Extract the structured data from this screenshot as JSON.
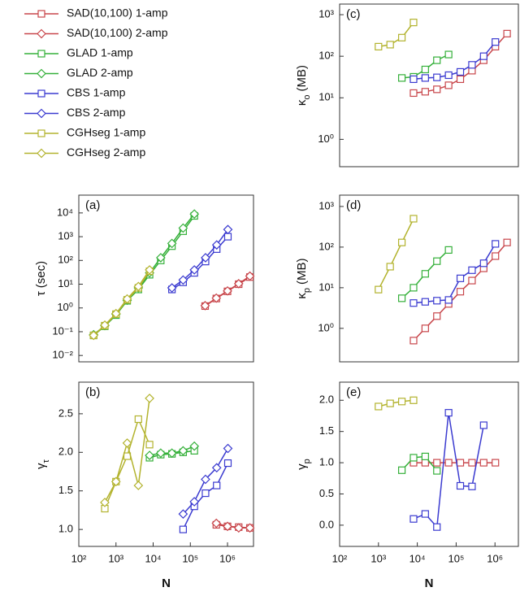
{
  "chart_data": [
    {
      "type": "line",
      "label": "(a)",
      "ylabel": {
        "symbol": "τ",
        "unit": "(sec)"
      },
      "log_x": true,
      "log_y": true,
      "legend": "outside-top-left",
      "xlim": [
        100,
        5000000
      ],
      "ylim": [
        0.0054,
        56000
      ],
      "yticks": [
        {
          "value": 0.01,
          "label": "10⁻²"
        },
        {
          "value": 0.1,
          "label": "10⁻¹"
        },
        {
          "value": 1,
          "label": "10⁰"
        },
        {
          "value": 10,
          "label": "10¹"
        },
        {
          "value": 100,
          "label": "10²"
        },
        {
          "value": 1000,
          "label": "10³"
        },
        {
          "value": 10000,
          "label": "10⁴"
        }
      ],
      "series": [
        {
          "name": "SAD(10,100) 1-amp",
          "color": "#c8464b",
          "marker": "square",
          "x": [
            250000,
            500000,
            1000000,
            2000000,
            4000000
          ],
          "values": [
            1.2,
            2.5,
            5,
            10,
            20
          ]
        },
        {
          "name": "SAD(10,100) 2-amp",
          "color": "#c8464b",
          "marker": "diamond",
          "x": [
            250000,
            500000,
            1000000,
            2000000,
            4000000
          ],
          "values": [
            1.25,
            2.6,
            5.2,
            10.5,
            22
          ]
        },
        {
          "name": "GLAD 1-amp",
          "color": "#35b03a",
          "marker": "square",
          "x": [
            250,
            500,
            1000,
            2000,
            4000,
            8000,
            16000,
            32000,
            64000,
            128000
          ],
          "values": [
            0.07,
            0.17,
            0.5,
            2,
            6,
            25,
            100,
            400,
            1700,
            7500
          ]
        },
        {
          "name": "GLAD 2-amp",
          "color": "#35b03a",
          "marker": "diamond",
          "x": [
            250,
            500,
            1000,
            2000,
            4000,
            8000,
            16000,
            32000,
            64000,
            128000
          ],
          "values": [
            0.075,
            0.18,
            0.55,
            2.1,
            7,
            30,
            130,
            520,
            2300,
            9000
          ]
        },
        {
          "name": "CBS 1-amp",
          "color": "#3b3bd0",
          "marker": "square",
          "x": [
            32000,
            64000,
            128000,
            256000,
            512000,
            1024000
          ],
          "values": [
            6,
            12,
            30,
            90,
            300,
            1000
          ]
        },
        {
          "name": "CBS 2-amp",
          "color": "#3b3bd0",
          "marker": "diamond",
          "x": [
            32000,
            64000,
            128000,
            256000,
            512000,
            1024000
          ],
          "values": [
            7,
            15,
            40,
            130,
            450,
            2000
          ]
        },
        {
          "name": "CGHseg 1-amp",
          "color": "#b3b32e",
          "marker": "square",
          "x": [
            250,
            500,
            1000,
            2000,
            4000,
            8000
          ],
          "values": [
            0.07,
            0.18,
            0.55,
            2.2,
            7,
            35
          ]
        },
        {
          "name": "CGHseg 2-amp",
          "color": "#b3b32e",
          "marker": "diamond",
          "x": [
            250,
            500,
            1000,
            2000,
            4000,
            8000
          ],
          "values": [
            0.07,
            0.19,
            0.58,
            2.4,
            8,
            40
          ]
        }
      ]
    },
    {
      "type": "line",
      "label": "(b)",
      "ylabel": {
        "symbol": "γ",
        "subscript": "τ"
      },
      "xlabel": "N",
      "log_x": true,
      "log_y": false,
      "xlim": [
        100,
        5000000
      ],
      "ylim": [
        0.78,
        2.91
      ],
      "xticks": [
        {
          "value": 100,
          "label": "10²"
        },
        {
          "value": 1000,
          "label": "10³"
        },
        {
          "value": 10000,
          "label": "10⁴"
        },
        {
          "value": 100000,
          "label": "10⁵"
        },
        {
          "value": 1000000,
          "label": "10⁶"
        }
      ],
      "yticks": [
        {
          "value": 1,
          "label": "1.0"
        },
        {
          "value": 1.5,
          "label": "1.5"
        },
        {
          "value": 2,
          "label": "2.0"
        },
        {
          "value": 2.5,
          "label": "2.5"
        }
      ],
      "series": [
        {
          "name": "SAD(10,100) 1-amp",
          "color": "#c8464b",
          "marker": "square",
          "x": [
            500000,
            1000000,
            2000000,
            4000000
          ],
          "values": [
            1.06,
            1.04,
            1.03,
            1.02
          ]
        },
        {
          "name": "SAD(10,100) 2-amp",
          "color": "#c8464b",
          "marker": "diamond",
          "x": [
            500000,
            1000000,
            2000000,
            4000000
          ],
          "values": [
            1.08,
            1.04,
            1.02,
            1.02
          ]
        },
        {
          "name": "GLAD 1-amp",
          "color": "#35b03a",
          "marker": "square",
          "x": [
            8000,
            16000,
            32000,
            64000,
            128000
          ],
          "values": [
            1.93,
            1.97,
            1.98,
            2.0,
            2.02
          ]
        },
        {
          "name": "GLAD 2-amp",
          "color": "#35b03a",
          "marker": "diamond",
          "x": [
            8000,
            16000,
            32000,
            64000,
            128000
          ],
          "values": [
            1.96,
            1.99,
            1.99,
            2.02,
            2.08
          ]
        },
        {
          "name": "CBS 1-amp",
          "color": "#3b3bd0",
          "marker": "square",
          "x": [
            64000,
            128000,
            256000,
            512000,
            1024000
          ],
          "values": [
            1.0,
            1.3,
            1.47,
            1.57,
            1.86
          ]
        },
        {
          "name": "CBS 2-amp",
          "color": "#3b3bd0",
          "marker": "diamond",
          "x": [
            64000,
            128000,
            256000,
            512000,
            1024000
          ],
          "values": [
            1.2,
            1.36,
            1.65,
            1.8,
            2.05
          ]
        },
        {
          "name": "CGHseg 1-amp",
          "color": "#b3b32e",
          "marker": "square",
          "x": [
            500,
            1000,
            2000,
            4000,
            8000
          ],
          "values": [
            1.27,
            1.62,
            1.95,
            2.43,
            2.1
          ]
        },
        {
          "name": "CGHseg 2-amp",
          "color": "#b3b32e",
          "marker": "diamond",
          "x": [
            500,
            1000,
            2000,
            4000,
            8000
          ],
          "values": [
            1.35,
            1.62,
            2.12,
            1.57,
            2.7
          ]
        }
      ]
    },
    {
      "type": "line",
      "label": "(c)",
      "ylabel": {
        "symbol": "κ",
        "subscript": "o",
        "unit": "(MB)"
      },
      "log_x": true,
      "log_y": true,
      "xlim": [
        100,
        4000000
      ],
      "ylim": [
        0.22,
        1800
      ],
      "yticks": [
        {
          "value": 1,
          "label": "10⁰"
        },
        {
          "value": 10,
          "label": "10¹"
        },
        {
          "value": 100,
          "label": "10²"
        },
        {
          "value": 1000,
          "label": "10³"
        }
      ],
      "series": [
        {
          "name": "SAD(10,100) 1-amp",
          "color": "#c8464b",
          "marker": "square",
          "x": [
            8000,
            16000,
            32000,
            64000,
            128000,
            256000,
            512000,
            1024000,
            2048000
          ],
          "values": [
            13,
            14,
            16,
            20,
            28,
            45,
            80,
            170,
            350
          ]
        },
        {
          "name": "GLAD 1-amp",
          "color": "#35b03a",
          "marker": "square",
          "x": [
            4000,
            8000,
            16000,
            32000,
            64000
          ],
          "values": [
            30,
            32,
            48,
            80,
            110
          ]
        },
        {
          "name": "CBS 1-amp",
          "color": "#3b3bd0",
          "marker": "square",
          "x": [
            8000,
            16000,
            32000,
            64000,
            128000,
            256000,
            512000,
            1024000
          ],
          "values": [
            28,
            30,
            31,
            35,
            42,
            62,
            100,
            220
          ]
        },
        {
          "name": "CGHseg 1-amp",
          "color": "#b3b32e",
          "marker": "square",
          "x": [
            1000,
            2000,
            4000,
            8000
          ],
          "values": [
            170,
            190,
            280,
            650
          ]
        }
      ]
    },
    {
      "type": "line",
      "label": "(d)",
      "ylabel": {
        "symbol": "κ",
        "subscript": "p",
        "unit": "(MB)"
      },
      "log_x": true,
      "log_y": true,
      "xlim": [
        100,
        4000000
      ],
      "ylim": [
        0.15,
        1900
      ],
      "yticks": [
        {
          "value": 1,
          "label": "10⁰"
        },
        {
          "value": 10,
          "label": "10¹"
        },
        {
          "value": 100,
          "label": "10²"
        },
        {
          "value": 1000,
          "label": "10³"
        }
      ],
      "series": [
        {
          "name": "SAD(10,100) 1-amp",
          "color": "#c8464b",
          "marker": "square",
          "x": [
            8000,
            16000,
            32000,
            64000,
            128000,
            256000,
            512000,
            1024000,
            2048000
          ],
          "values": [
            0.5,
            1,
            2,
            4,
            8,
            15,
            30,
            60,
            130
          ]
        },
        {
          "name": "GLAD 1-amp",
          "color": "#35b03a",
          "marker": "square",
          "x": [
            4000,
            8000,
            16000,
            32000,
            64000
          ],
          "values": [
            5.5,
            10,
            22,
            45,
            85
          ]
        },
        {
          "name": "CBS 1-amp",
          "color": "#3b3bd0",
          "marker": "square",
          "x": [
            8000,
            16000,
            32000,
            64000,
            128000,
            256000,
            512000,
            1024000
          ],
          "values": [
            4.2,
            4.5,
            4.8,
            5,
            17,
            27,
            40,
            120
          ]
        },
        {
          "name": "CGHseg 1-amp",
          "color": "#b3b32e",
          "marker": "square",
          "x": [
            1000,
            2000,
            4000,
            8000
          ],
          "values": [
            9,
            33,
            130,
            500
          ]
        }
      ]
    },
    {
      "type": "line",
      "label": "(e)",
      "ylabel": {
        "symbol": "γ",
        "subscript": "p"
      },
      "xlabel": "N",
      "log_x": true,
      "log_y": false,
      "xlim": [
        100,
        4000000
      ],
      "ylim": [
        -0.34,
        2.29
      ],
      "xticks": [
        {
          "value": 100,
          "label": "10²"
        },
        {
          "value": 1000,
          "label": "10³"
        },
        {
          "value": 10000,
          "label": "10⁴"
        },
        {
          "value": 100000,
          "label": "10⁵"
        },
        {
          "value": 1000000,
          "label": "10⁶"
        }
      ],
      "yticks": [
        {
          "value": 0,
          "label": "0.0"
        },
        {
          "value": 0.5,
          "label": "0.5"
        },
        {
          "value": 1,
          "label": "1.0"
        },
        {
          "value": 1.5,
          "label": "1.5"
        },
        {
          "value": 2,
          "label": "2.0"
        }
      ],
      "series": [
        {
          "name": "SAD(10,100) 1-amp",
          "color": "#c8464b",
          "marker": "square",
          "x": [
            8000,
            16000,
            32000,
            64000,
            128000,
            256000,
            512000,
            1024000
          ],
          "values": [
            1,
            1,
            1,
            1,
            1,
            1,
            1,
            1
          ]
        },
        {
          "name": "GLAD 1-amp",
          "color": "#35b03a",
          "marker": "square",
          "x": [
            4000,
            8000,
            16000,
            32000
          ],
          "values": [
            0.88,
            1.08,
            1.1,
            0.87
          ]
        },
        {
          "name": "CBS 1-amp",
          "color": "#3b3bd0",
          "marker": "square",
          "x": [
            8000,
            16000,
            32000,
            64000,
            128000,
            256000,
            512000
          ],
          "values": [
            0.1,
            0.18,
            -0.03,
            1.8,
            0.63,
            0.62,
            1.6
          ]
        },
        {
          "name": "CGHseg 1-amp",
          "color": "#b3b32e",
          "marker": "square",
          "x": [
            1000,
            2000,
            4000,
            8000
          ],
          "values": [
            1.9,
            1.95,
            1.98,
            2.0
          ]
        }
      ]
    }
  ]
}
